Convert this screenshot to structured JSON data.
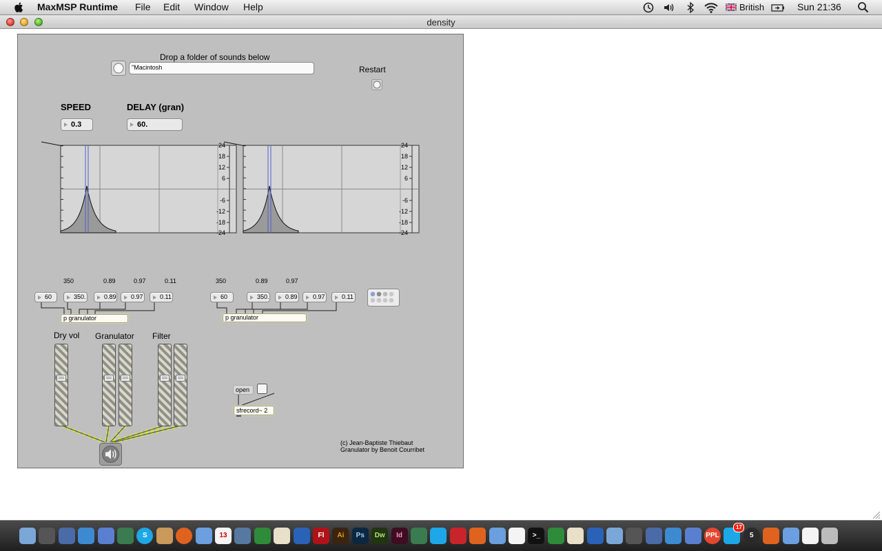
{
  "menubar": {
    "app_name": "MaxMSP Runtime",
    "menus": [
      "File",
      "Edit",
      "Window",
      "Help"
    ],
    "language": "British",
    "clock": "Sun 21:36",
    "tray_icons": [
      "time-machine-icon",
      "volume-icon",
      "bluetooth-icon",
      "wifi-icon",
      "language-flag-icon",
      "battery-icon",
      "spotlight-icon"
    ]
  },
  "window": {
    "title": "density"
  },
  "patch": {
    "drop_label": "Drop a folder of sounds below",
    "folder_path": "\"Macintosh",
    "restart_label": "Restart",
    "speed": {
      "label": "SPEED",
      "value": "0.3"
    },
    "delay": {
      "label": "DELAY (gran)",
      "value": "60."
    },
    "filter_graph": {
      "db_labels": [
        "24",
        "18",
        "12",
        "6",
        "-6",
        "-12",
        "-18",
        "-24"
      ]
    },
    "granulator_left": {
      "top_values": [
        "350",
        "0.89",
        "0.97",
        "0.11"
      ],
      "params": [
        "60",
        "350.",
        "0.89",
        "0.97",
        "0.11"
      ],
      "object": "p granulator"
    },
    "granulator_right": {
      "top_values": [
        "350",
        "0.89",
        "0.97"
      ],
      "params": [
        "60",
        "350.",
        "0.89",
        "0.97",
        "0.11"
      ],
      "object": "p granulator"
    },
    "fader_labels": {
      "dry": "Dry vol",
      "granulator": "Granulator",
      "filter": "Filter"
    },
    "record": {
      "open_label": "open",
      "object": "sfrecord~ 2"
    },
    "credits": {
      "line1": "(c) Jean-Baptiste Thiebaut",
      "line2": "Granulator by Benoit Courribet"
    }
  },
  "dock": {
    "icons": [
      "finder-icon",
      "dashboard-icon",
      "preview-icon",
      "safari-icon",
      "facetime-icon",
      "activity-monitor-icon",
      "skype-icon",
      "address-book-icon",
      "firefox-icon",
      "itunes-icon",
      "ical-icon",
      "iphoto-icon",
      "excel-icon",
      "textedit-icon",
      "google-earth-icon",
      "flash-icon",
      "illustrator-icon",
      "photoshop-icon",
      "dreamweaver-icon",
      "indesign-icon",
      "toolbox-icon",
      "drive-icon",
      "acrobat-icon",
      "scripts-icon",
      "photo-icon",
      "maxmsp-icon",
      "terminal-icon",
      "garageband-icon",
      "spaces-icon",
      "system-prefs-icon",
      "network-icon",
      "app-icon",
      "people-icon",
      "contacts-icon",
      "calendar-icon",
      "ppl-icon",
      "mail-icon",
      "five-icon",
      "folder-icon",
      "documents-icon",
      "downloads-icon",
      "trash-icon"
    ],
    "labels": {
      "ical_date": "13",
      "flash": "Fl",
      "illustrator": "Ai",
      "photoshop": "Ps",
      "dreamweaver": "Dw",
      "indesign": "Id",
      "ppl": "PPL",
      "mail_badge": "17",
      "five": "5"
    },
    "colors": {
      "flash": "#b01217",
      "illustrator": "#f19a1d",
      "photoshop": "#1d6fbf",
      "dreamweaver": "#6aa73b",
      "indesign": "#c2296d",
      "skype": "#1ea7e6",
      "firefox": "#e0621f",
      "excel": "#2e8b3a",
      "acrobat": "#c8242b",
      "terminal": "#111111"
    }
  }
}
